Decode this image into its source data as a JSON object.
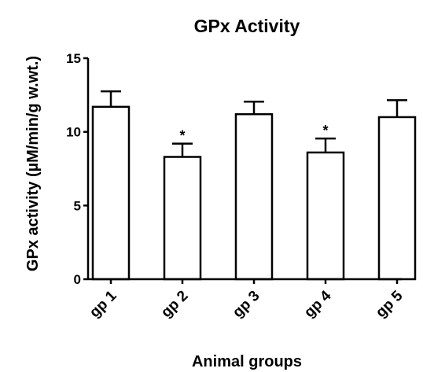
{
  "chart_data": {
    "type": "bar",
    "title": "GPx Activity",
    "xlabel": "Animal groups",
    "ylabel": "GPx activity (µM/min/g w.wt.)",
    "categories": [
      "gp 1",
      "gp 2",
      "gp 3",
      "gp 4",
      "gp 5"
    ],
    "values": [
      11.7,
      8.3,
      11.2,
      8.6,
      11.0
    ],
    "errors": [
      1.05,
      0.9,
      0.85,
      0.95,
      1.15
    ],
    "significance": [
      "",
      "*",
      "",
      "*",
      ""
    ],
    "yticks": [
      0,
      5,
      10,
      15
    ],
    "ylim": [
      0,
      15
    ],
    "grid": false,
    "colors": {
      "bar_fill": "#ffffff",
      "bar_stroke": "#000000",
      "axis": "#000000"
    }
  }
}
